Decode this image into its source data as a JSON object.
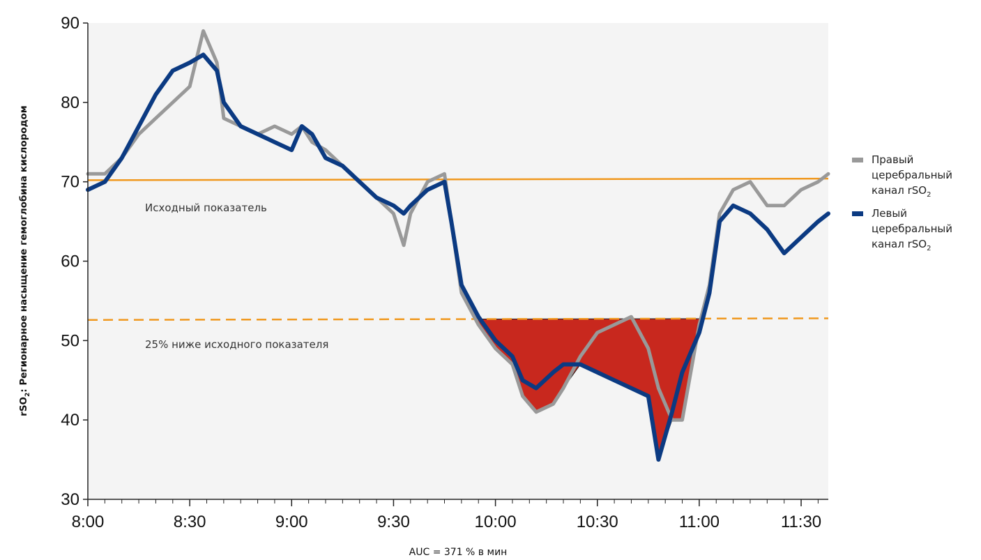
{
  "chart_data": {
    "type": "line",
    "xlabel": "",
    "ylabel": "rSO2: Регионарное насыщение гемоглобина кислородом",
    "ylim": [
      30,
      90
    ],
    "xlim": [
      "8:00",
      "11:38"
    ],
    "y_ticks": [
      30,
      40,
      50,
      60,
      70,
      80,
      90
    ],
    "x_ticks": [
      "8:00",
      "8:30",
      "9:00",
      "9:30",
      "10:00",
      "10:30",
      "11:00",
      "11:30"
    ],
    "grid": false,
    "legend_position": "right",
    "baseline": {
      "label": "Исходный показатель",
      "start_value": 70.2,
      "end_value": 70.4,
      "color": "#f0981e"
    },
    "threshold": {
      "label": "25% ниже исходного показателя",
      "start_value": 52.6,
      "end_value": 52.8,
      "color": "#f0981e"
    },
    "auc_text": "AUC = 371 % в мин",
    "area_color": "#c8281e",
    "series": [
      {
        "name": "Правый церебральный канал rSO2",
        "color": "#999999",
        "x": [
          "8:00",
          "8:05",
          "8:10",
          "8:15",
          "8:20",
          "8:25",
          "8:30",
          "8:34",
          "8:38",
          "8:40",
          "8:45",
          "8:50",
          "8:55",
          "9:00",
          "9:03",
          "9:06",
          "9:10",
          "9:15",
          "9:20",
          "9:25",
          "9:30",
          "9:33",
          "9:35",
          "9:40",
          "9:45",
          "9:47",
          "9:50",
          "9:55",
          "10:00",
          "10:05",
          "10:08",
          "10:12",
          "10:17",
          "10:20",
          "10:25",
          "10:30",
          "10:35",
          "10:40",
          "10:45",
          "10:48",
          "10:52",
          "10:55",
          "11:00",
          "11:03",
          "11:06",
          "11:10",
          "11:15",
          "11:20",
          "11:25",
          "11:30",
          "11:35",
          "11:38"
        ],
        "y": [
          71,
          71,
          73,
          76,
          78,
          80,
          82,
          89,
          85,
          78,
          77,
          76,
          77,
          76,
          77,
          75,
          74,
          72,
          70,
          68,
          66,
          62,
          66,
          70,
          71,
          65,
          56,
          52,
          49,
          47,
          43,
          41,
          42,
          44,
          48,
          51,
          52,
          53,
          49,
          44,
          40,
          40,
          52,
          57,
          66,
          69,
          70,
          67,
          67,
          69,
          70,
          71
        ]
      },
      {
        "name": "Левый церебральный канал rSO2",
        "color": "#0b3a82",
        "x": [
          "8:00",
          "8:05",
          "8:10",
          "8:15",
          "8:20",
          "8:25",
          "8:30",
          "8:34",
          "8:38",
          "8:40",
          "8:45",
          "8:50",
          "8:55",
          "9:00",
          "9:03",
          "9:06",
          "9:10",
          "9:15",
          "9:20",
          "9:25",
          "9:30",
          "9:33",
          "9:35",
          "9:40",
          "9:45",
          "9:47",
          "9:50",
          "9:55",
          "10:00",
          "10:05",
          "10:08",
          "10:12",
          "10:17",
          "10:20",
          "10:25",
          "10:30",
          "10:35",
          "10:40",
          "10:45",
          "10:48",
          "10:52",
          "10:55",
          "11:00",
          "11:03",
          "11:06",
          "11:10",
          "11:15",
          "11:20",
          "11:25",
          "11:30",
          "11:35",
          "11:38"
        ],
        "y": [
          69,
          70,
          73,
          77,
          81,
          84,
          85,
          86,
          84,
          80,
          77,
          76,
          75,
          74,
          77,
          76,
          73,
          72,
          70,
          68,
          67,
          66,
          67,
          69,
          70,
          65,
          57,
          53,
          50,
          48,
          45,
          44,
          46,
          47,
          47,
          46,
          45,
          44,
          43,
          35,
          41,
          46,
          51,
          56,
          65,
          67,
          66,
          64,
          61,
          63,
          65,
          66
        ]
      }
    ]
  }
}
